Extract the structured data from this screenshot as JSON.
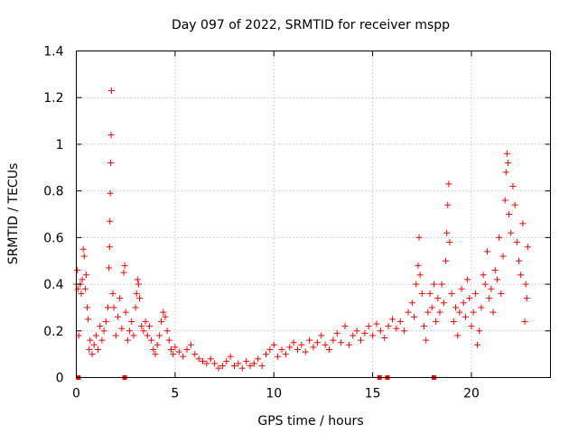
{
  "chart_data": {
    "type": "scatter",
    "title": "Day 097 of 2022, SRMTID for receiver mspp",
    "xlabel": "GPS time / hours",
    "ylabel": "SRMTID / TECUs",
    "xlim": [
      0,
      24
    ],
    "ylim": [
      0,
      1.4
    ],
    "xticks": [
      0,
      5,
      10,
      15,
      20
    ],
    "xtick_labels": [
      "0",
      "5",
      "10",
      "15",
      "20"
    ],
    "yticks": [
      0,
      0.2,
      0.4,
      0.6,
      0.8,
      1.0,
      1.2,
      1.4
    ],
    "ytick_labels": [
      "0",
      "0.2",
      "0.4",
      "0.6",
      "0.8",
      "1",
      "1.2",
      "1.4"
    ],
    "grid": true,
    "marker": "+",
    "color": "#ff0000",
    "series": [
      {
        "name": "SRMTID",
        "points": [
          [
            0.0,
            0.4
          ],
          [
            0.05,
            0.46
          ],
          [
            0.08,
            0.38
          ],
          [
            0.12,
            0.18
          ],
          [
            0.2,
            0.4
          ],
          [
            0.25,
            0.36
          ],
          [
            0.3,
            0.42
          ],
          [
            0.35,
            0.55
          ],
          [
            0.4,
            0.52
          ],
          [
            0.45,
            0.38
          ],
          [
            0.5,
            0.44
          ],
          [
            0.55,
            0.3
          ],
          [
            0.6,
            0.25
          ],
          [
            0.65,
            0.12
          ],
          [
            0.7,
            0.16
          ],
          [
            0.8,
            0.1
          ],
          [
            0.9,
            0.14
          ],
          [
            1.0,
            0.18
          ],
          [
            1.1,
            0.12
          ],
          [
            1.2,
            0.22
          ],
          [
            1.3,
            0.16
          ],
          [
            1.4,
            0.2
          ],
          [
            1.5,
            0.24
          ],
          [
            1.6,
            0.3
          ],
          [
            1.65,
            0.47
          ],
          [
            1.68,
            0.56
          ],
          [
            1.7,
            0.67
          ],
          [
            1.72,
            0.79
          ],
          [
            1.74,
            0.92
          ],
          [
            1.76,
            1.04
          ],
          [
            1.78,
            1.23
          ],
          [
            1.85,
            0.36
          ],
          [
            1.9,
            0.3
          ],
          [
            2.0,
            0.18
          ],
          [
            2.1,
            0.26
          ],
          [
            2.2,
            0.34
          ],
          [
            2.3,
            0.21
          ],
          [
            2.4,
            0.45
          ],
          [
            2.45,
            0.48
          ],
          [
            2.5,
            0.28
          ],
          [
            2.6,
            0.16
          ],
          [
            2.7,
            0.2
          ],
          [
            2.8,
            0.24
          ],
          [
            2.9,
            0.18
          ],
          [
            3.0,
            0.3
          ],
          [
            3.05,
            0.36
          ],
          [
            3.1,
            0.42
          ],
          [
            3.15,
            0.4
          ],
          [
            3.2,
            0.34
          ],
          [
            3.3,
            0.22
          ],
          [
            3.4,
            0.2
          ],
          [
            3.5,
            0.24
          ],
          [
            3.6,
            0.18
          ],
          [
            3.7,
            0.22
          ],
          [
            3.8,
            0.16
          ],
          [
            3.9,
            0.12
          ],
          [
            4.0,
            0.1
          ],
          [
            4.1,
            0.14
          ],
          [
            4.2,
            0.18
          ],
          [
            4.3,
            0.24
          ],
          [
            4.4,
            0.28
          ],
          [
            4.5,
            0.26
          ],
          [
            4.6,
            0.2
          ],
          [
            4.7,
            0.16
          ],
          [
            4.8,
            0.12
          ],
          [
            4.9,
            0.1
          ],
          [
            5.0,
            0.13
          ],
          [
            5.2,
            0.11
          ],
          [
            5.4,
            0.09
          ],
          [
            5.6,
            0.12
          ],
          [
            5.8,
            0.14
          ],
          [
            6.0,
            0.1
          ],
          [
            6.2,
            0.08
          ],
          [
            6.4,
            0.07
          ],
          [
            6.6,
            0.06
          ],
          [
            6.8,
            0.08
          ],
          [
            7.0,
            0.06
          ],
          [
            7.2,
            0.04
          ],
          [
            7.4,
            0.05
          ],
          [
            7.6,
            0.07
          ],
          [
            7.8,
            0.09
          ],
          [
            8.0,
            0.05
          ],
          [
            8.2,
            0.06
          ],
          [
            8.4,
            0.04
          ],
          [
            8.6,
            0.07
          ],
          [
            8.8,
            0.05
          ],
          [
            9.0,
            0.06
          ],
          [
            9.2,
            0.08
          ],
          [
            9.4,
            0.05
          ],
          [
            9.6,
            0.1
          ],
          [
            9.8,
            0.12
          ],
          [
            10.0,
            0.14
          ],
          [
            10.2,
            0.09
          ],
          [
            10.4,
            0.12
          ],
          [
            10.6,
            0.1
          ],
          [
            10.8,
            0.13
          ],
          [
            11.0,
            0.15
          ],
          [
            11.2,
            0.12
          ],
          [
            11.4,
            0.14
          ],
          [
            11.6,
            0.11
          ],
          [
            11.8,
            0.16
          ],
          [
            12.0,
            0.13
          ],
          [
            12.2,
            0.15
          ],
          [
            12.4,
            0.18
          ],
          [
            12.6,
            0.14
          ],
          [
            12.8,
            0.12
          ],
          [
            13.0,
            0.16
          ],
          [
            13.2,
            0.19
          ],
          [
            13.4,
            0.15
          ],
          [
            13.6,
            0.22
          ],
          [
            13.8,
            0.14
          ],
          [
            14.0,
            0.18
          ],
          [
            14.2,
            0.2
          ],
          [
            14.4,
            0.16
          ],
          [
            14.6,
            0.19
          ],
          [
            14.8,
            0.22
          ],
          [
            15.0,
            0.18
          ],
          [
            15.2,
            0.23
          ],
          [
            15.4,
            0.2
          ],
          [
            15.6,
            0.17
          ],
          [
            15.8,
            0.22
          ],
          [
            16.0,
            0.25
          ],
          [
            16.2,
            0.21
          ],
          [
            16.4,
            0.24
          ],
          [
            16.6,
            0.2
          ],
          [
            16.8,
            0.28
          ],
          [
            17.0,
            0.32
          ],
          [
            17.1,
            0.26
          ],
          [
            17.2,
            0.4
          ],
          [
            17.3,
            0.48
          ],
          [
            17.35,
            0.6
          ],
          [
            17.4,
            0.44
          ],
          [
            17.5,
            0.36
          ],
          [
            17.6,
            0.22
          ],
          [
            17.7,
            0.16
          ],
          [
            17.8,
            0.28
          ],
          [
            17.9,
            0.36
          ],
          [
            18.0,
            0.3
          ],
          [
            18.1,
            0.4
          ],
          [
            18.2,
            0.24
          ],
          [
            18.3,
            0.34
          ],
          [
            18.4,
            0.28
          ],
          [
            18.5,
            0.4
          ],
          [
            18.6,
            0.32
          ],
          [
            18.7,
            0.5
          ],
          [
            18.75,
            0.62
          ],
          [
            18.8,
            0.74
          ],
          [
            18.85,
            0.83
          ],
          [
            18.9,
            0.58
          ],
          [
            19.0,
            0.36
          ],
          [
            19.1,
            0.24
          ],
          [
            19.2,
            0.3
          ],
          [
            19.3,
            0.18
          ],
          [
            19.4,
            0.28
          ],
          [
            19.5,
            0.38
          ],
          [
            19.6,
            0.32
          ],
          [
            19.7,
            0.26
          ],
          [
            19.8,
            0.42
          ],
          [
            19.9,
            0.34
          ],
          [
            20.0,
            0.22
          ],
          [
            20.1,
            0.28
          ],
          [
            20.2,
            0.36
          ],
          [
            20.3,
            0.14
          ],
          [
            20.4,
            0.2
          ],
          [
            20.5,
            0.3
          ],
          [
            20.6,
            0.44
          ],
          [
            20.7,
            0.4
          ],
          [
            20.8,
            0.54
          ],
          [
            20.9,
            0.34
          ],
          [
            21.0,
            0.38
          ],
          [
            21.1,
            0.28
          ],
          [
            21.2,
            0.46
          ],
          [
            21.3,
            0.42
          ],
          [
            21.4,
            0.6
          ],
          [
            21.5,
            0.36
          ],
          [
            21.6,
            0.52
          ],
          [
            21.7,
            0.76
          ],
          [
            21.75,
            0.88
          ],
          [
            21.8,
            0.96
          ],
          [
            21.85,
            0.92
          ],
          [
            21.9,
            0.7
          ],
          [
            22.0,
            0.62
          ],
          [
            22.1,
            0.82
          ],
          [
            22.2,
            0.74
          ],
          [
            22.3,
            0.58
          ],
          [
            22.4,
            0.5
          ],
          [
            22.5,
            0.44
          ],
          [
            22.6,
            0.66
          ],
          [
            22.7,
            0.24
          ],
          [
            22.75,
            0.4
          ],
          [
            22.8,
            0.34
          ],
          [
            22.85,
            0.56
          ]
        ]
      }
    ],
    "zero_markers_x": [
      0.1,
      2.45,
      15.35,
      15.75,
      18.1
    ]
  }
}
